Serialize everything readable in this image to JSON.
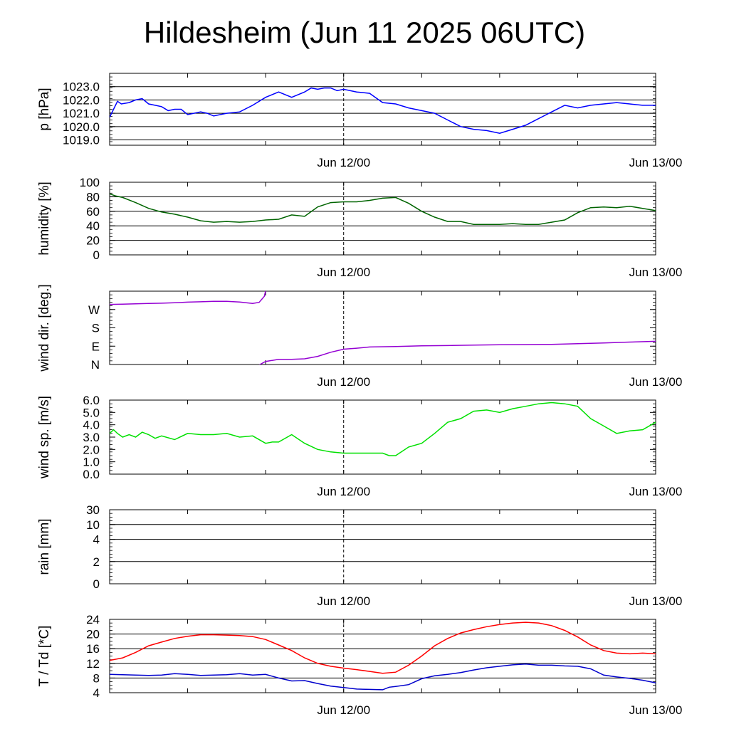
{
  "title": "Hildesheim (Jun 11 2025 06UTC)",
  "colors": {
    "pressure": "#0000ff",
    "humidity": "#006400",
    "wind_dir": "#9400d3",
    "wind_speed": "#00e000",
    "temperature": "#ff0000",
    "dewpoint": "#0000cc",
    "grid": "#000000"
  },
  "chart_data": [
    {
      "type": "line",
      "ylabel": "p [hPa]",
      "yticks": [
        1019.0,
        1020.0,
        1021.0,
        1022.0,
        1023.0
      ],
      "ytick_labels": [
        "1019.0",
        "1020.0",
        "1021.0",
        "1022.0",
        "1023.0"
      ],
      "ylim": [
        1018.6,
        1024.0
      ],
      "x_tick_labels": [
        "Jun 12/00",
        "Jun 13/00"
      ],
      "x_tick_hours": [
        18,
        42
      ],
      "xlim_hours": [
        0,
        42
      ],
      "grid": true,
      "series": [
        {
          "color_key": "pressure",
          "x": [
            0,
            0.3,
            0.6,
            0.9,
            1.5,
            2.0,
            2.5,
            3.0,
            3.5,
            4.0,
            4.5,
            5.0,
            5.5,
            6.0,
            7.0,
            7.5,
            8.0,
            9.0,
            10.0,
            11.0,
            12.0,
            13.0,
            14.0,
            15.0,
            15.5,
            16.0,
            16.5,
            17.0,
            17.5,
            18.0,
            19.0,
            20.0,
            21.0,
            22.0,
            23.0,
            24.0,
            25.0,
            26.0,
            27.0,
            28.0,
            29.0,
            30.0,
            31.0,
            32.0,
            33.0,
            34.0,
            35.0,
            36.0,
            37.0,
            38.0,
            39.0,
            40.0,
            41.0,
            42.0
          ],
          "y": [
            1020.7,
            1021.3,
            1021.9,
            1021.7,
            1021.8,
            1022.0,
            1022.1,
            1021.7,
            1021.6,
            1021.5,
            1021.2,
            1021.3,
            1021.3,
            1020.9,
            1021.1,
            1021.0,
            1020.8,
            1021.0,
            1021.1,
            1021.6,
            1022.2,
            1022.6,
            1022.2,
            1022.6,
            1022.9,
            1022.8,
            1022.9,
            1022.9,
            1022.7,
            1022.8,
            1022.6,
            1022.5,
            1021.8,
            1021.7,
            1021.4,
            1021.2,
            1021.0,
            1020.5,
            1020.0,
            1019.8,
            1019.7,
            1019.5,
            1019.8,
            1020.1,
            1020.6,
            1021.1,
            1021.6,
            1021.4,
            1021.6,
            1021.7,
            1021.8,
            1021.7,
            1021.6,
            1021.6
          ]
        }
      ]
    },
    {
      "type": "line",
      "ylabel": "humidity [%]",
      "yticks": [
        0,
        20,
        40,
        60,
        80,
        100
      ],
      "ytick_labels": [
        "0",
        "20",
        "40",
        "60",
        "80",
        "100"
      ],
      "ylim": [
        0,
        100
      ],
      "x_tick_labels": [
        "Jun 12/00",
        "Jun 13/00"
      ],
      "x_tick_hours": [
        18,
        42
      ],
      "xlim_hours": [
        0,
        42
      ],
      "grid": true,
      "series": [
        {
          "color_key": "humidity",
          "x": [
            0,
            0.5,
            1,
            2,
            3,
            4,
            5,
            6,
            7,
            8,
            9,
            10,
            11,
            12,
            13,
            14,
            15,
            16,
            17,
            18,
            19,
            20,
            21,
            22,
            23,
            24,
            25,
            26,
            27,
            28,
            29,
            30,
            31,
            32,
            33,
            34,
            35,
            36,
            37,
            38,
            39,
            40,
            41,
            42
          ],
          "y": [
            84,
            81,
            79,
            72,
            64,
            59,
            56,
            52,
            47,
            45,
            46,
            45,
            46,
            48,
            49,
            55,
            53,
            66,
            72,
            73,
            73,
            75,
            78,
            79,
            71,
            60,
            52,
            46,
            46,
            42,
            42,
            42,
            43,
            42,
            42,
            45,
            48,
            58,
            65,
            66,
            65,
            67,
            64,
            61
          ]
        }
      ]
    },
    {
      "type": "line",
      "ylabel": "wind dir. [deg.]",
      "yticks": [
        0,
        90,
        180,
        270
      ],
      "ytick_labels": [
        "N",
        "E",
        "S",
        "W"
      ],
      "ylim": [
        0,
        360
      ],
      "x_tick_labels": [
        "Jun 12/00",
        "Jun 13/00"
      ],
      "x_tick_hours": [
        18,
        42
      ],
      "xlim_hours": [
        0,
        42
      ],
      "grid": false,
      "series": [
        {
          "color_key": "wind_dir",
          "x": [
            0,
            1,
            2,
            3,
            4,
            5,
            6,
            7,
            8,
            9,
            10,
            11,
            11.5,
            11.9,
            12.0
          ],
          "y": [
            295,
            296,
            298,
            300,
            301,
            303,
            306,
            308,
            310,
            310,
            307,
            300,
            305,
            335,
            362
          ]
        },
        {
          "color_key": "wind_dir",
          "x": [
            11.5,
            12,
            13,
            14,
            15,
            16,
            17,
            18,
            19,
            20,
            22,
            24,
            26,
            28,
            30,
            32,
            34,
            36,
            38,
            40,
            42
          ],
          "y": [
            -2,
            15,
            25,
            25,
            28,
            40,
            60,
            75,
            80,
            86,
            88,
            92,
            93,
            95,
            97,
            98,
            99,
            102,
            106,
            110,
            114
          ]
        }
      ]
    },
    {
      "type": "line",
      "ylabel": "wind sp. [m/s]",
      "yticks": [
        0.0,
        1.0,
        2.0,
        3.0,
        4.0,
        5.0,
        6.0
      ],
      "ytick_labels": [
        "0.0",
        "1.0",
        "2.0",
        "3.0",
        "4.0",
        "5.0",
        "6.0"
      ],
      "ylim": [
        0,
        6
      ],
      "x_tick_labels": [
        "Jun 12/00",
        "Jun 13/00"
      ],
      "x_tick_hours": [
        18,
        42
      ],
      "xlim_hours": [
        0,
        42
      ],
      "grid": false,
      "series": [
        {
          "color_key": "wind_speed",
          "x": [
            0,
            0.3,
            0.6,
            1,
            1.5,
            2,
            2.5,
            3,
            3.5,
            4,
            5,
            6,
            7,
            8,
            9,
            10,
            11,
            12,
            12.5,
            13,
            14,
            15,
            16,
            17,
            18,
            19,
            20,
            21,
            21.5,
            22,
            23,
            24,
            25,
            26,
            27,
            28,
            29,
            30,
            31,
            32,
            33,
            34,
            35,
            36,
            37,
            38,
            39,
            40,
            41,
            42
          ],
          "y": [
            3.3,
            3.6,
            3.3,
            3.0,
            3.2,
            3.0,
            3.4,
            3.2,
            2.9,
            3.1,
            2.8,
            3.3,
            3.2,
            3.2,
            3.3,
            3.0,
            3.1,
            2.5,
            2.6,
            2.6,
            3.2,
            2.5,
            2.0,
            1.8,
            1.7,
            1.7,
            1.7,
            1.7,
            1.5,
            1.5,
            2.2,
            2.5,
            3.3,
            4.2,
            4.5,
            5.1,
            5.2,
            5.0,
            5.3,
            5.5,
            5.7,
            5.8,
            5.7,
            5.5,
            4.5,
            3.9,
            3.3,
            3.5,
            3.6,
            4.2
          ]
        }
      ]
    },
    {
      "type": "line",
      "ylabel": "rain [mm]",
      "yticks": [
        0,
        2,
        4,
        10,
        30
      ],
      "ytick_labels": [
        "0",
        "2",
        "4",
        "10",
        "30"
      ],
      "ylim": [
        0,
        30
      ],
      "x_tick_labels": [
        "Jun 12/00",
        "Jun 13/00"
      ],
      "x_tick_hours": [
        18,
        42
      ],
      "xlim_hours": [
        0,
        42
      ],
      "grid": true,
      "series": []
    },
    {
      "type": "line",
      "ylabel": "T / Td [*C]",
      "yticks": [
        4,
        8,
        12,
        16,
        20,
        24
      ],
      "ytick_labels": [
        "4",
        "8",
        "12",
        "16",
        "20",
        "24"
      ],
      "ylim": [
        4,
        24
      ],
      "x_tick_labels": [
        "Jun 12/00",
        "Jun 13/00"
      ],
      "x_tick_hours": [
        18,
        42
      ],
      "xlim_hours": [
        0,
        42
      ],
      "grid": true,
      "series": [
        {
          "color_key": "temperature",
          "x": [
            0,
            1,
            2,
            3,
            4,
            5,
            6,
            7,
            8,
            9,
            10,
            11,
            12,
            13,
            14,
            15,
            16,
            17,
            18,
            19,
            20,
            21,
            22,
            23,
            24,
            25,
            26,
            27,
            28,
            29,
            30,
            31,
            32,
            33,
            34,
            35,
            36,
            37,
            38,
            39,
            40,
            41,
            42
          ],
          "y": [
            12.8,
            13.5,
            15.0,
            16.8,
            17.8,
            18.8,
            19.4,
            19.8,
            19.8,
            19.7,
            19.6,
            19.3,
            18.5,
            17.0,
            15.5,
            13.5,
            12.0,
            11.2,
            10.7,
            10.3,
            9.8,
            9.3,
            9.6,
            11.5,
            14.0,
            16.8,
            18.8,
            20.3,
            21.2,
            22.0,
            22.6,
            23.0,
            23.2,
            23.0,
            22.3,
            21.0,
            19.2,
            17.0,
            15.5,
            14.8,
            14.6,
            14.8,
            14.6
          ]
        },
        {
          "color_key": "dewpoint",
          "x": [
            0,
            1,
            2,
            3,
            4,
            5,
            6,
            7,
            8,
            9,
            10,
            11,
            12,
            13,
            14,
            15,
            16,
            17,
            18,
            19,
            20,
            21,
            21.5,
            22,
            23,
            24,
            25,
            26,
            27,
            28,
            29,
            30,
            31,
            32,
            33,
            34,
            35,
            36,
            37,
            38,
            39,
            40,
            41,
            42
          ],
          "y": [
            9.0,
            8.9,
            8.8,
            8.7,
            8.8,
            9.2,
            9.0,
            8.7,
            8.8,
            8.9,
            9.2,
            8.8,
            9.0,
            8.0,
            7.2,
            7.3,
            6.5,
            5.8,
            5.4,
            5.0,
            4.9,
            4.8,
            5.5,
            5.7,
            6.2,
            7.8,
            8.6,
            9.0,
            9.5,
            10.2,
            10.8,
            11.2,
            11.6,
            11.8,
            11.5,
            11.5,
            11.3,
            11.2,
            10.5,
            8.8,
            8.3,
            7.9,
            7.4,
            6.7
          ]
        }
      ]
    }
  ]
}
